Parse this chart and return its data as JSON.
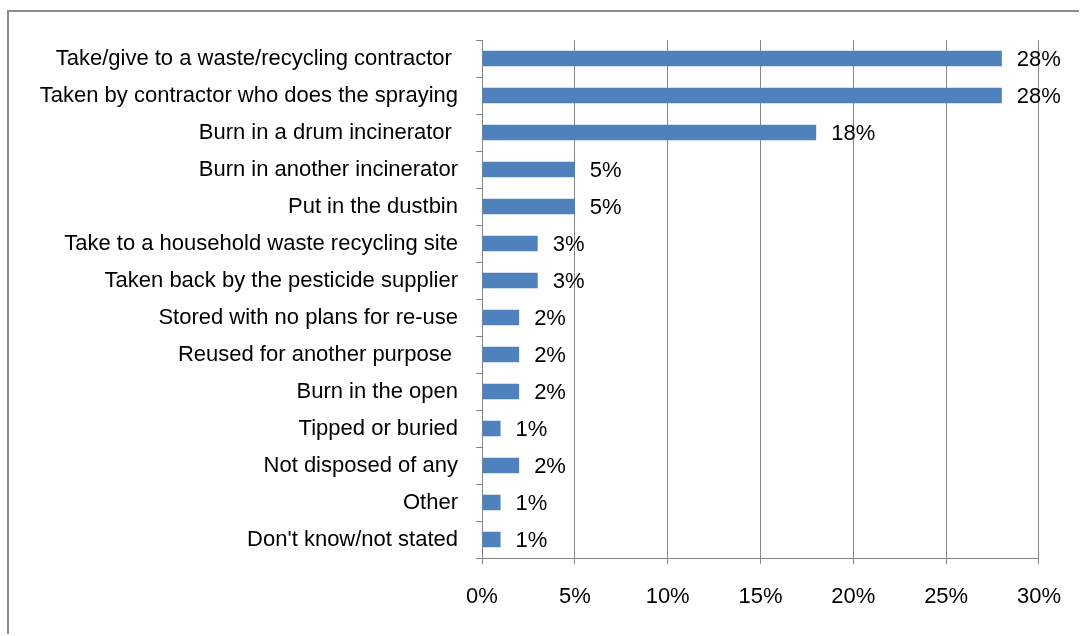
{
  "chart_data": {
    "type": "bar",
    "orientation": "horizontal",
    "categories": [
      "Take/give to a waste/recycling contractor ",
      "Taken by contractor who does the spraying",
      "Burn in a drum incinerator ",
      "Burn in another incinerator",
      "Put in the dustbin",
      "Take to a household waste recycling site",
      "Taken back by the pesticide supplier",
      "Stored with no plans for re-use",
      "Reused for another purpose ",
      "Burn in the open",
      "Tipped or buried",
      "Not disposed of any",
      "Other",
      "Don't know/not stated"
    ],
    "values": [
      28,
      28,
      18,
      5,
      5,
      3,
      3,
      2,
      2,
      2,
      1,
      2,
      1,
      1
    ],
    "value_labels": [
      "28%",
      "28%",
      "18%",
      "5%",
      "5%",
      "3%",
      "3%",
      "2%",
      "2%",
      "2%",
      "1%",
      "2%",
      "1%",
      "1%"
    ],
    "color": "#4f81bd",
    "xlim": [
      0,
      30
    ],
    "xticks": [
      {
        "value": 0,
        "label": "0%"
      },
      {
        "value": 5,
        "label": "5%"
      },
      {
        "value": 10,
        "label": "10%"
      },
      {
        "value": 15,
        "label": "15%"
      },
      {
        "value": 20,
        "label": "20%"
      },
      {
        "value": 25,
        "label": "25%"
      },
      {
        "value": 30,
        "label": "30%"
      }
    ],
    "grid": "x"
  }
}
